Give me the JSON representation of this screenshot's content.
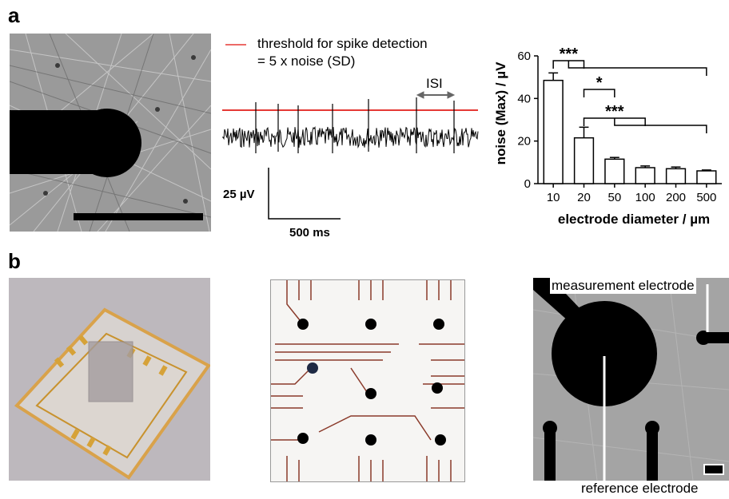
{
  "panel_a": {
    "label": "a",
    "legend_line1": "threshold for spike detection",
    "legend_line2": "= 5 x noise (SD)",
    "isi_label": "ISI",
    "scale_y_label": "25 µV",
    "scale_x_label": "500 ms",
    "colors": {
      "threshold": "#e53935",
      "trace": "#000000"
    }
  },
  "panel_b": {
    "label": "b",
    "measurement_label": "measurement electrode",
    "reference_label": "reference electrode"
  },
  "chart_data": {
    "type": "bar",
    "categories": [
      "10",
      "20",
      "50",
      "100",
      "200",
      "500"
    ],
    "values": [
      48.5,
      21.5,
      11.5,
      7.5,
      7.0,
      6.0
    ],
    "errors": [
      3.5,
      5.0,
      0.8,
      0.8,
      0.8,
      0.4
    ],
    "ylabel": "noise (Max) / µV",
    "xlabel": "electrode diameter / µm",
    "ylim": [
      0,
      60
    ],
    "yticks": [
      "0",
      "20",
      "40",
      "60"
    ],
    "significance": [
      {
        "from": "10",
        "to": [
          "20",
          "500"
        ],
        "label": "***"
      },
      {
        "from": "20",
        "to": [
          "50"
        ],
        "label": "*"
      },
      {
        "from": "20",
        "to": [
          "100",
          "500"
        ],
        "label": "***"
      }
    ]
  }
}
